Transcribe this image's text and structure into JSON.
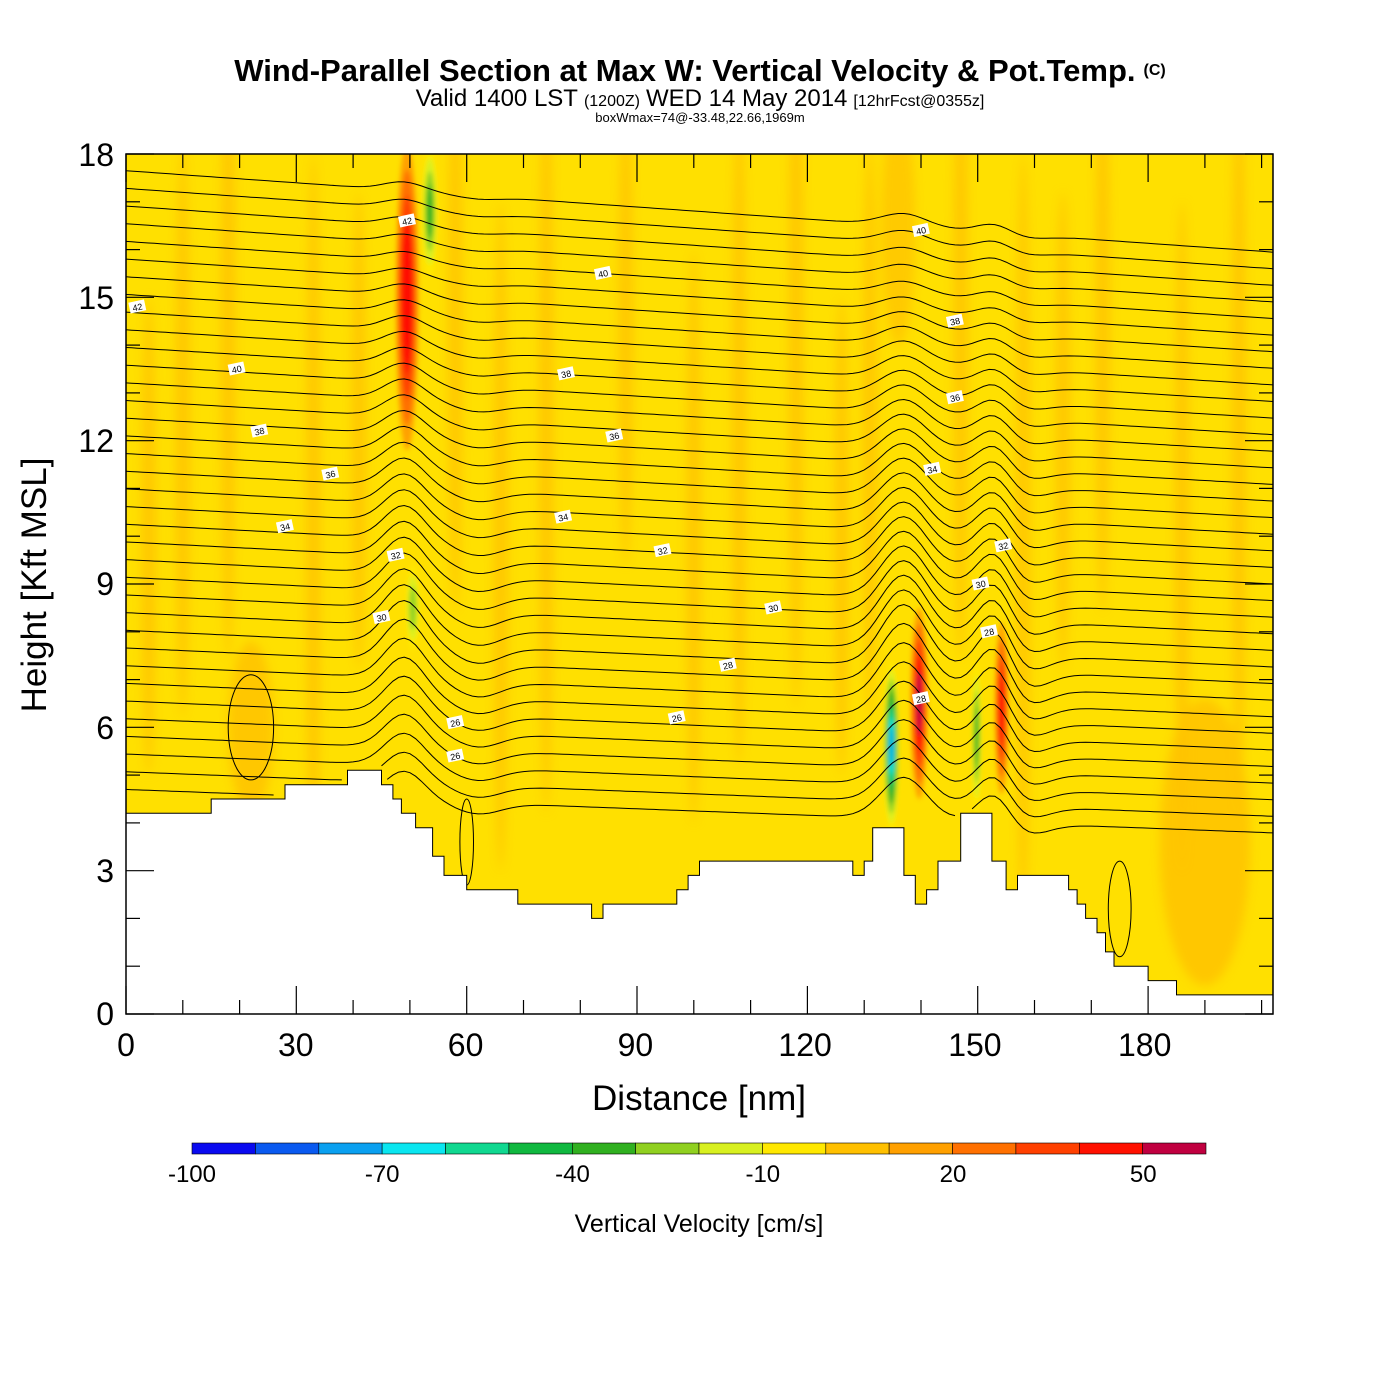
{
  "header": {
    "title_main": "Wind-Parallel Section at Max W: Vertical Velocity & Pot.Temp.",
    "title_mark": "(C)",
    "valid_a": "Valid 1400 LST",
    "valid_b": "(1200Z)",
    "valid_c": "WED 14 May 2014",
    "valid_d": "[12hrFcst@0355z]",
    "boxw": "boxWmax=74@-33.48,22.66,1969m"
  },
  "colors": {
    "background_field": "#ffe000",
    "terrain": "#ffffff",
    "contour": "#000000"
  },
  "chart_data": {
    "type": "heatmap",
    "xlabel": "Distance [nm]",
    "ylabel": "Height [Kft MSL]",
    "xlim": [
      0,
      202
    ],
    "ylim": [
      0,
      18
    ],
    "x_ticks": [
      0,
      30,
      60,
      90,
      120,
      150,
      180
    ],
    "y_ticks": [
      0,
      3,
      6,
      9,
      12,
      15,
      18
    ],
    "terrain_kft": [
      [
        0,
        4.2
      ],
      [
        15,
        4.2
      ],
      [
        15,
        4.5
      ],
      [
        28,
        4.5
      ],
      [
        28,
        4.8
      ],
      [
        39,
        4.8
      ],
      [
        39,
        5.1
      ],
      [
        45,
        5.1
      ],
      [
        45,
        4.8
      ],
      [
        47,
        4.8
      ],
      [
        47,
        4.5
      ],
      [
        48.5,
        4.5
      ],
      [
        48.5,
        4.2
      ],
      [
        51,
        4.2
      ],
      [
        51,
        3.9
      ],
      [
        54,
        3.9
      ],
      [
        54,
        3.3
      ],
      [
        56,
        3.3
      ],
      [
        56,
        2.9
      ],
      [
        60,
        2.9
      ],
      [
        60,
        2.6
      ],
      [
        69,
        2.6
      ],
      [
        69,
        2.3
      ],
      [
        82,
        2.3
      ],
      [
        82,
        2.0
      ],
      [
        84,
        2.0
      ],
      [
        84,
        2.3
      ],
      [
        97,
        2.3
      ],
      [
        97,
        2.6
      ],
      [
        99,
        2.6
      ],
      [
        99,
        2.9
      ],
      [
        101,
        2.9
      ],
      [
        101,
        3.2
      ],
      [
        128,
        3.2
      ],
      [
        128,
        2.9
      ],
      [
        130,
        2.9
      ],
      [
        130,
        3.2
      ],
      [
        131.5,
        3.2
      ],
      [
        131.5,
        3.9
      ],
      [
        137,
        3.9
      ],
      [
        137,
        2.9
      ],
      [
        139,
        2.9
      ],
      [
        139,
        2.3
      ],
      [
        141,
        2.3
      ],
      [
        141,
        2.6
      ],
      [
        143,
        2.6
      ],
      [
        143,
        3.2
      ],
      [
        147,
        3.2
      ],
      [
        147,
        4.2
      ],
      [
        152.5,
        4.2
      ],
      [
        152.5,
        3.2
      ],
      [
        155,
        3.2
      ],
      [
        155,
        2.6
      ],
      [
        157,
        2.6
      ],
      [
        157,
        2.9
      ],
      [
        166,
        2.9
      ],
      [
        166,
        2.6
      ],
      [
        167.5,
        2.6
      ],
      [
        167.5,
        2.3
      ],
      [
        169,
        2.3
      ],
      [
        169,
        2.0
      ],
      [
        171,
        2.0
      ],
      [
        171,
        1.7
      ],
      [
        172.5,
        1.7
      ],
      [
        172.5,
        1.3
      ],
      [
        174,
        1.3
      ],
      [
        174,
        1.0
      ],
      [
        180,
        1.0
      ],
      [
        180,
        0.7
      ],
      [
        185,
        0.7
      ],
      [
        185,
        0.4
      ],
      [
        202,
        0.4
      ]
    ],
    "updrafts": [
      {
        "x": 49.5,
        "y": 15.0,
        "rx": 2.0,
        "ry": 3.2,
        "value": 45
      },
      {
        "x": 139.7,
        "y": 6.5,
        "rx": 1.5,
        "ry": 2.0,
        "value": 50
      },
      {
        "x": 154.2,
        "y": 6.4,
        "rx": 1.2,
        "ry": 1.8,
        "value": 40
      }
    ],
    "downdrafts": [
      {
        "x": 53.5,
        "y": 16.8,
        "rx": 1.4,
        "ry": 1.4,
        "value": -40
      },
      {
        "x": 50.5,
        "y": 8.5,
        "rx": 1.2,
        "ry": 0.9,
        "value": -30
      },
      {
        "x": 134.8,
        "y": 5.6,
        "rx": 1.4,
        "ry": 1.8,
        "value": -75
      },
      {
        "x": 149.8,
        "y": 5.8,
        "rx": 0.9,
        "ry": 1.6,
        "value": -40
      }
    ],
    "contour_labels": [
      {
        "text": "42",
        "x": 49.5,
        "y": 16.6
      },
      {
        "text": "42",
        "x": 2,
        "y": 14.8
      },
      {
        "text": "40",
        "x": 84,
        "y": 15.5
      },
      {
        "text": "40",
        "x": 140,
        "y": 16.4
      },
      {
        "text": "40",
        "x": 19.5,
        "y": 13.5
      },
      {
        "text": "38",
        "x": 77.5,
        "y": 13.4
      },
      {
        "text": "38",
        "x": 146,
        "y": 14.5
      },
      {
        "text": "38",
        "x": 23.5,
        "y": 12.2
      },
      {
        "text": "36",
        "x": 86,
        "y": 12.1
      },
      {
        "text": "36",
        "x": 146,
        "y": 12.9
      },
      {
        "text": "36",
        "x": 36,
        "y": 11.3
      },
      {
        "text": "34",
        "x": 142,
        "y": 11.4
      },
      {
        "text": "34",
        "x": 77,
        "y": 10.4
      },
      {
        "text": "34",
        "x": 28,
        "y": 10.2
      },
      {
        "text": "32",
        "x": 154.5,
        "y": 9.8
      },
      {
        "text": "32",
        "x": 94.5,
        "y": 9.7
      },
      {
        "text": "32",
        "x": 47.5,
        "y": 9.6
      },
      {
        "text": "30",
        "x": 150.5,
        "y": 9.0
      },
      {
        "text": "30",
        "x": 114,
        "y": 8.5
      },
      {
        "text": "30",
        "x": 45,
        "y": 8.3
      },
      {
        "text": "28",
        "x": 152,
        "y": 8.0
      },
      {
        "text": "28",
        "x": 106,
        "y": 7.3
      },
      {
        "text": "28",
        "x": 140,
        "y": 6.6
      },
      {
        "text": "26",
        "x": 97,
        "y": 6.2
      },
      {
        "text": "26",
        "x": 58,
        "y": 6.1
      },
      {
        "text": "26",
        "x": 58,
        "y": 5.4
      }
    ],
    "colorbar": {
      "title": "Vertical Velocity [cm/s]",
      "tick_labels": [
        "-100",
        "-70",
        "-40",
        "-10",
        "20",
        "50"
      ],
      "tick_values": [
        -100,
        -70,
        -40,
        -10,
        20,
        50
      ],
      "levels": [
        -100,
        -90,
        -80,
        -70,
        -60,
        -50,
        -40,
        -30,
        -20,
        -10,
        0,
        10,
        20,
        30,
        40,
        50,
        60
      ],
      "colors": [
        "#0a0af0",
        "#0a5af0",
        "#0aa0f0",
        "#0ae6f0",
        "#10d890",
        "#10b840",
        "#30b020",
        "#90d020",
        "#d8f020",
        "#ffe800",
        "#ffc000",
        "#ffa000",
        "#ff7000",
        "#ff4000",
        "#ff1000",
        "#c00040"
      ]
    }
  }
}
